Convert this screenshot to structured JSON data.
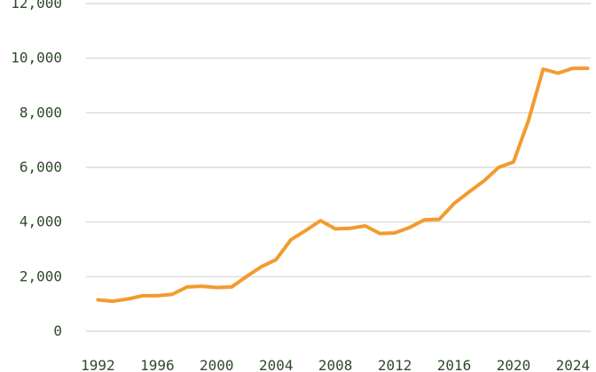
{
  "chart_data": {
    "type": "line",
    "title": "",
    "xlabel": "",
    "ylabel": "",
    "xlim": [
      1991.2,
      2025.2
    ],
    "ylim": [
      0,
      12000
    ],
    "grid": true,
    "y_ticks": [
      0,
      2000,
      4000,
      6000,
      8000,
      10000,
      12000
    ],
    "y_tick_labels": [
      "0",
      "2,000",
      "4,000",
      "6,000",
      "8,000",
      "10,000",
      "12,000"
    ],
    "x_ticks": [
      1992,
      1996,
      2000,
      2004,
      2008,
      2012,
      2016,
      2020,
      2024
    ],
    "x_tick_labels": [
      "1992",
      "1996",
      "2000",
      "2004",
      "2008",
      "2012",
      "2016",
      "2020",
      "2024"
    ],
    "series": [
      {
        "color": "#f29b2e",
        "x": [
          1992,
          1993,
          1994,
          1995,
          1996,
          1997,
          1998,
          1999,
          2000,
          2001,
          2002,
          2003,
          2004,
          2005,
          2006,
          2007,
          2008,
          2009,
          2010,
          2011,
          2012,
          2013,
          2014,
          2015,
          2016,
          2017,
          2018,
          2019,
          2020,
          2021,
          2022,
          2023,
          2024,
          2025
        ],
        "y": [
          1150,
          1100,
          1180,
          1300,
          1300,
          1350,
          1620,
          1650,
          1600,
          1620,
          2000,
          2360,
          2620,
          3350,
          3690,
          4050,
          3750,
          3770,
          3860,
          3580,
          3600,
          3800,
          4080,
          4100,
          4680,
          5100,
          5500,
          6000,
          6200,
          7700,
          9600,
          9450,
          9630,
          9630
        ]
      }
    ]
  }
}
